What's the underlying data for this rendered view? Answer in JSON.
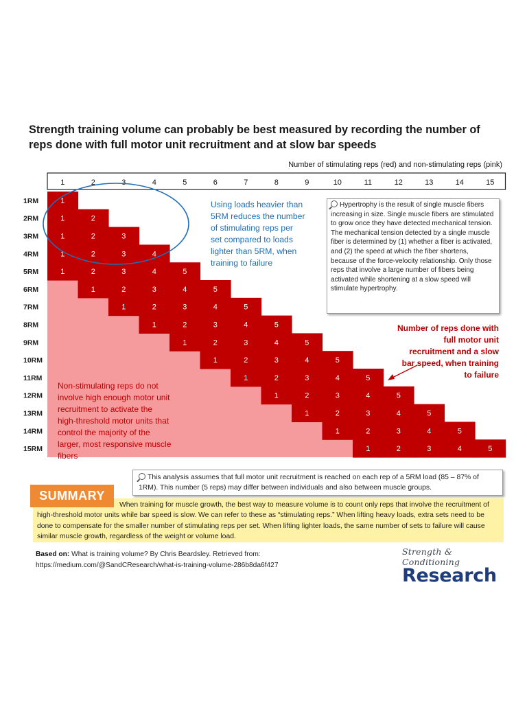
{
  "title": "Strength training volume can probably be best measured by recording the number of reps done with full motor unit recruitment and at slow bar speeds",
  "chart_data": {
    "type": "table",
    "x_caption": "Number of stimulating reps (red) and non-stimulating reps (pink)",
    "columns": [
      "1",
      "2",
      "3",
      "4",
      "5",
      "6",
      "7",
      "8",
      "9",
      "10",
      "11",
      "12",
      "13",
      "14",
      "15"
    ],
    "rows": [
      "1RM",
      "2RM",
      "3RM",
      "4RM",
      "5RM",
      "6RM",
      "7RM",
      "8RM",
      "9RM",
      "10RM",
      "11RM",
      "12RM",
      "13RM",
      "14RM",
      "15RM"
    ],
    "stimulating_reps_per_set": 5,
    "colors": {
      "stimulating": "#c00000",
      "non_stimulating": "#f59a9d",
      "header_border": "#222222"
    },
    "annotations": {
      "circle": "Using loads heavier than 5RM reduces the number of stimulating reps per set compared to loads lighter than 5RM, when training to failure",
      "arrow": "Number of reps done with full motor unit recruitment and a slow bar speed, when training to failure",
      "pink": "Non-stimulating reps do not involve high enough motor unit recruitment to activate the high-threshold motor units that control the majority of the larger, most responsive muscle fibers"
    },
    "annotation_colors": {
      "circle": "#1f6fb5",
      "arrow": "#c00000",
      "pink": "#c00000"
    }
  },
  "tooltip": "Hypertrophy is the result of single muscle fibers increasing in size. Single muscle fibers are stimulated to grow once they have detected mechanical tension. The mechanical tension detected by a single muscle fiber is determined by (1) whether a fiber is activated, and (2) the speed at which the fiber shortens, because of the force-velocity relationship. Only those reps that involve a large number of fibers being activated while shortening at a slow speed will stimulate hypertrophy.",
  "note": "This analysis assumes that full motor unit recruitment is reached on each rep of a 5RM load (85 – 87% of 1RM). This number (5 reps) may differ between individuals and also between muscle groups.",
  "summary": {
    "label": "SUMMARY",
    "text": "When training for muscle growth, the best way to measure volume is to count only reps that involve the recruitment of high-threshold motor units while bar speed is slow. We can refer to these as “stimulating reps.” When lifting heavy loads, extra sets need to be done to compensate for the smaller number of stimulating reps per set. When lifting lighter loads, the same number of sets to failure will cause similar muscle growth, regardless of the weight or volume load."
  },
  "source": {
    "label": "Based on:",
    "text": "What is training volume? By Chris Beardsley. Retrieved from:",
    "url": "https://medium.com/@SandCResearch/what-is-training-volume-286b8da6f427"
  },
  "logo": {
    "script": "Strength & Conditioning",
    "main": "Research"
  }
}
